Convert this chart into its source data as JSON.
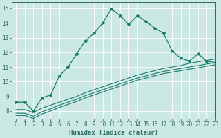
{
  "series": [
    {
      "x": [
        0,
        1,
        2,
        3,
        4,
        5,
        6,
        7,
        8,
        9,
        10,
        11,
        12,
        13,
        14,
        15,
        16,
        17,
        18,
        19,
        20,
        21,
        22,
        23
      ],
      "y": [
        8.6,
        8.6,
        8.0,
        8.9,
        9.1,
        10.4,
        11.0,
        11.9,
        12.8,
        13.3,
        14.0,
        14.95,
        14.5,
        13.9,
        14.5,
        14.1,
        13.65,
        13.3,
        12.1,
        11.6,
        11.4,
        11.9,
        11.4,
        11.3
      ],
      "color": "#1a7a6a",
      "marker": "*",
      "markersize": 3,
      "linewidth": 0.9
    },
    {
      "x": [
        0,
        1,
        2,
        3,
        4,
        5,
        6,
        7,
        8,
        9,
        10,
        11,
        12,
        13,
        14,
        15,
        16,
        17,
        18,
        19,
        20,
        21,
        22,
        23
      ],
      "y": [
        8.1,
        8.1,
        7.9,
        8.2,
        8.4,
        8.6,
        8.8,
        9.0,
        9.25,
        9.45,
        9.65,
        9.85,
        10.05,
        10.25,
        10.45,
        10.6,
        10.75,
        10.9,
        11.0,
        11.1,
        11.25,
        11.35,
        11.45,
        11.55
      ],
      "color": "#1a7a6a",
      "marker": null,
      "linewidth": 0.8
    },
    {
      "x": [
        0,
        1,
        2,
        3,
        4,
        5,
        6,
        7,
        8,
        9,
        10,
        11,
        12,
        13,
        14,
        15,
        16,
        17,
        18,
        19,
        20,
        21,
        22,
        23
      ],
      "y": [
        7.85,
        7.85,
        7.65,
        7.95,
        8.15,
        8.4,
        8.6,
        8.8,
        9.05,
        9.25,
        9.45,
        9.65,
        9.85,
        10.05,
        10.25,
        10.4,
        10.55,
        10.7,
        10.8,
        10.9,
        11.0,
        11.1,
        11.2,
        11.3
      ],
      "color": "#1a7a6a",
      "marker": null,
      "linewidth": 0.8
    },
    {
      "x": [
        0,
        1,
        2,
        3,
        4,
        5,
        6,
        7,
        8,
        9,
        10,
        11,
        12,
        13,
        14,
        15,
        16,
        17,
        18,
        19,
        20,
        21,
        22,
        23
      ],
      "y": [
        7.7,
        7.7,
        7.5,
        7.8,
        8.0,
        8.25,
        8.45,
        8.65,
        8.9,
        9.1,
        9.3,
        9.5,
        9.7,
        9.9,
        10.1,
        10.25,
        10.4,
        10.55,
        10.65,
        10.75,
        10.85,
        10.95,
        11.05,
        11.15
      ],
      "color": "#1a7a6a",
      "marker": null,
      "linewidth": 0.8
    }
  ],
  "xlabel": "Humidex (Indice chaleur)",
  "xlim": [
    -0.5,
    23
  ],
  "ylim": [
    7.5,
    15.4
  ],
  "yticks": [
    8,
    9,
    10,
    11,
    12,
    13,
    14,
    15
  ],
  "xticks": [
    0,
    1,
    2,
    3,
    4,
    5,
    6,
    7,
    8,
    9,
    10,
    11,
    12,
    13,
    14,
    15,
    16,
    17,
    18,
    19,
    20,
    21,
    22,
    23
  ],
  "background_color": "#cce8e5",
  "grid_color": "#ffffff",
  "tick_color": "#2a6b60",
  "label_color": "#2a6b60",
  "xlabel_fontsize": 6.5,
  "tick_fontsize": 5.5
}
